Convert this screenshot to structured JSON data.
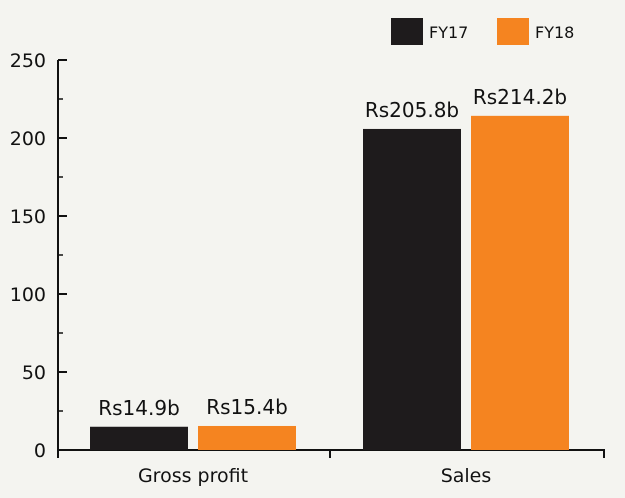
{
  "chart_data": {
    "type": "bar",
    "categories": [
      "Gross profit",
      "Sales"
    ],
    "series": [
      {
        "name": "FY17",
        "color": "#1e1b1c",
        "values": [
          14.9,
          205.8
        ],
        "labels": [
          "Rs14.9b",
          "Rs205.8b"
        ]
      },
      {
        "name": "FY18",
        "color": "#f58420",
        "values": [
          15.4,
          214.2
        ],
        "labels": [
          "Rs15.4b",
          "Rs214.2b"
        ]
      }
    ],
    "ylim": [
      0,
      250
    ],
    "yticks": [
      0,
      50,
      100,
      150,
      200,
      250
    ],
    "minor_yticks": [
      25,
      75,
      125,
      175,
      225
    ],
    "title": "",
    "xlabel": "",
    "ylabel": "",
    "grid": false,
    "legend_position": "top-right"
  }
}
